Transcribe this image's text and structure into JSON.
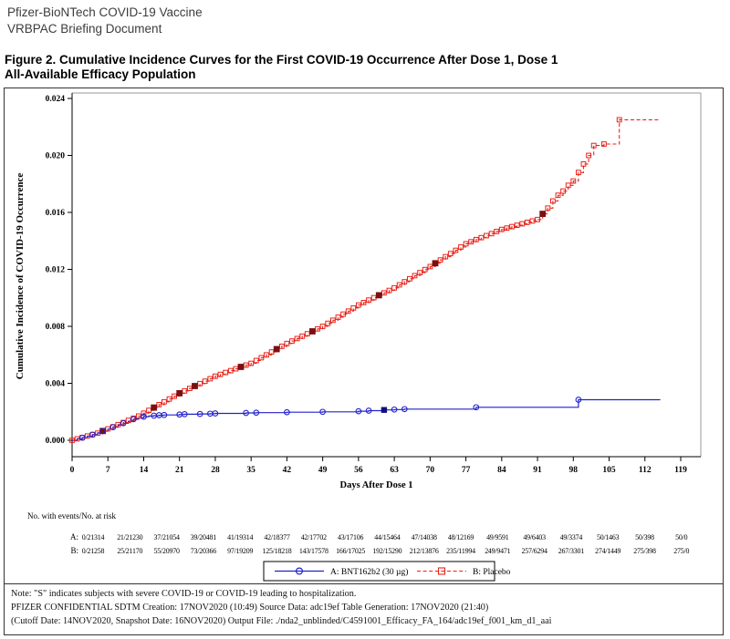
{
  "header": {
    "line1": "Pfizer-BioNTech COVID-19 Vaccine",
    "line2": "VRBPAC Briefing Document"
  },
  "title": {
    "line1": "Figure 2. Cumulative Incidence Curves for the First COVID-19 Occurrence After Dose 1, Dose 1",
    "line2": "All-Available Efficacy Population"
  },
  "chart_data": {
    "type": "line",
    "subtype": "kaplan-meier-step",
    "xlabel": "Days After Dose 1",
    "ylabel": "Cumulative Incidence of COVID-19 Occurrence",
    "xlim": [
      0,
      119
    ],
    "ylim": [
      0,
      0.024
    ],
    "xticks": [
      "0",
      "7",
      "14",
      "21",
      "28",
      "35",
      "42",
      "49",
      "56",
      "63",
      "70",
      "77",
      "84",
      "91",
      "98",
      "105",
      "112",
      "119"
    ],
    "yticks": [
      "0.000",
      "0.004",
      "0.008",
      "0.012",
      "0.016",
      "0.020",
      "0.024"
    ],
    "grid": false,
    "legend_position": "bottom-center",
    "series": [
      {
        "id": "B",
        "label": "B: Placebo",
        "color": "#e8231a",
        "severe_color": "#7d0f0f",
        "line": "dashed",
        "marker": "open-square",
        "points": [
          [
            0,
            0
          ],
          [
            1,
            0.0001
          ],
          [
            2,
            0.0002
          ],
          [
            3,
            0.0003
          ],
          [
            4,
            0.0004
          ],
          [
            5,
            0.0005
          ],
          [
            6,
            0.00065
          ],
          [
            7,
            0.0008
          ],
          [
            8,
            0.00095
          ],
          [
            9,
            0.0011
          ],
          [
            10,
            0.00125
          ],
          [
            11,
            0.0014
          ],
          [
            12,
            0.00155
          ],
          [
            13,
            0.0017
          ],
          [
            14,
            0.0019
          ],
          [
            15,
            0.0021
          ],
          [
            16,
            0.0023
          ],
          [
            17,
            0.0025
          ],
          [
            18,
            0.0027
          ],
          [
            19,
            0.0029
          ],
          [
            20,
            0.0031
          ],
          [
            21,
            0.0033
          ],
          [
            22,
            0.00347
          ],
          [
            23,
            0.00364
          ],
          [
            24,
            0.00381
          ],
          [
            25,
            0.00398
          ],
          [
            26,
            0.00415
          ],
          [
            27,
            0.00432
          ],
          [
            28,
            0.0045
          ],
          [
            29,
            0.00463
          ],
          [
            30,
            0.00476
          ],
          [
            31,
            0.00489
          ],
          [
            32,
            0.00502
          ],
          [
            33,
            0.00515
          ],
          [
            34,
            0.00528
          ],
          [
            35,
            0.0054
          ],
          [
            36,
            0.0056
          ],
          [
            37,
            0.0058
          ],
          [
            38,
            0.006
          ],
          [
            39,
            0.0062
          ],
          [
            40,
            0.0064
          ],
          [
            41,
            0.0066
          ],
          [
            42,
            0.0068
          ],
          [
            43,
            0.00697
          ],
          [
            44,
            0.00714
          ],
          [
            45,
            0.00731
          ],
          [
            46,
            0.00748
          ],
          [
            47,
            0.00765
          ],
          [
            48,
            0.00782
          ],
          [
            49,
            0.008
          ],
          [
            50,
            0.00821
          ],
          [
            51,
            0.00843
          ],
          [
            52,
            0.00864
          ],
          [
            53,
            0.00886
          ],
          [
            54,
            0.00907
          ],
          [
            55,
            0.00929
          ],
          [
            56,
            0.0095
          ],
          [
            57,
            0.00967
          ],
          [
            58,
            0.00984
          ],
          [
            59,
            0.01001
          ],
          [
            60,
            0.01018
          ],
          [
            61,
            0.01035
          ],
          [
            62,
            0.01052
          ],
          [
            63,
            0.0107
          ],
          [
            64,
            0.01091
          ],
          [
            65,
            0.01113
          ],
          [
            66,
            0.01134
          ],
          [
            67,
            0.01156
          ],
          [
            68,
            0.01177
          ],
          [
            69,
            0.01199
          ],
          [
            70,
            0.0122
          ],
          [
            71,
            0.01243
          ],
          [
            72,
            0.01266
          ],
          [
            73,
            0.01289
          ],
          [
            74,
            0.01311
          ],
          [
            75,
            0.01334
          ],
          [
            76,
            0.01357
          ],
          [
            77,
            0.0138
          ],
          [
            78,
            0.01394
          ],
          [
            79,
            0.01409
          ],
          [
            80,
            0.01423
          ],
          [
            81,
            0.01437
          ],
          [
            82,
            0.01451
          ],
          [
            83,
            0.01466
          ],
          [
            84,
            0.0148
          ],
          [
            85,
            0.0149
          ],
          [
            86,
            0.015
          ],
          [
            87,
            0.0151
          ],
          [
            88,
            0.0152
          ],
          [
            89,
            0.0153
          ],
          [
            90,
            0.0154
          ],
          [
            91,
            0.0155
          ],
          [
            92,
            0.0159
          ],
          [
            93,
            0.0163
          ],
          [
            94,
            0.0168
          ],
          [
            95,
            0.0172
          ],
          [
            96,
            0.0175
          ],
          [
            97,
            0.0179
          ],
          [
            98,
            0.0182
          ],
          [
            99,
            0.0188
          ],
          [
            100,
            0.0194
          ],
          [
            101,
            0.02
          ],
          [
            102,
            0.0207
          ],
          [
            104,
            0.0208
          ],
          [
            107,
            0.0225
          ],
          [
            115,
            0.0225
          ]
        ],
        "severe_days": [
          6,
          16,
          21,
          24,
          33,
          40,
          47,
          60,
          71,
          92
        ]
      },
      {
        "id": "A",
        "label": "A: BNT162b2 (30 µg)",
        "color": "#2222cc",
        "severe_color": "#11117a",
        "line": "solid",
        "marker": "open-circle",
        "points": [
          [
            0,
            0
          ],
          [
            1,
            0.0001
          ],
          [
            2,
            0.00018
          ],
          [
            3,
            0.00028
          ],
          [
            4,
            0.0004
          ],
          [
            5,
            0.00052
          ],
          [
            6,
            0.00064
          ],
          [
            7,
            0.00078
          ],
          [
            8,
            0.00092
          ],
          [
            9,
            0.00106
          ],
          [
            10,
            0.0012
          ],
          [
            11,
            0.00134
          ],
          [
            12,
            0.00148
          ],
          [
            13,
            0.00158
          ],
          [
            14,
            0.00166
          ],
          [
            15,
            0.0017
          ],
          [
            16,
            0.00173
          ],
          [
            17,
            0.00176
          ],
          [
            18,
            0.00178
          ],
          [
            21,
            0.00181
          ],
          [
            22,
            0.00183
          ],
          [
            25,
            0.00185
          ],
          [
            27,
            0.00187
          ],
          [
            28,
            0.00189
          ],
          [
            34,
            0.00192
          ],
          [
            36,
            0.00194
          ],
          [
            42,
            0.00197
          ],
          [
            49,
            0.002
          ],
          [
            56,
            0.00204
          ],
          [
            58,
            0.00208
          ],
          [
            61,
            0.00213
          ],
          [
            63,
            0.00216
          ],
          [
            65,
            0.00219
          ],
          [
            79,
            0.00232
          ],
          [
            99,
            0.00285
          ],
          [
            115,
            0.00285
          ]
        ],
        "marker_days": [
          2,
          4,
          6,
          8,
          10,
          12,
          14,
          16,
          17,
          18,
          21,
          22,
          25,
          27,
          28,
          34,
          36,
          42,
          49,
          56,
          58,
          63,
          65,
          79,
          99
        ],
        "severe_days": [
          61
        ]
      }
    ]
  },
  "risk_table": {
    "caption": "No. with events/No. at risk",
    "rows": [
      {
        "label": "A:",
        "values": [
          "0/21314",
          "21/21230",
          "37/21054",
          "39/20481",
          "41/19314",
          "42/18377",
          "42/17702",
          "43/17106",
          "44/15464",
          "47/14038",
          "48/12169",
          "49/9591",
          "49/6403",
          "49/3374",
          "50/1463",
          "50/398",
          "50/0"
        ]
      },
      {
        "label": "B:",
        "values": [
          "0/21258",
          "25/21170",
          "55/20970",
          "73/20366",
          "97/19209",
          "125/18218",
          "143/17578",
          "166/17025",
          "192/15290",
          "212/13876",
          "235/11994",
          "249/9471",
          "257/6294",
          "267/3301",
          "274/1449",
          "275/398",
          "275/0"
        ]
      }
    ]
  },
  "footnotes": [
    "Note: \"S\" indicates subjects with severe COVID-19 or COVID-19 leading to hospitalization.",
    "PFIZER CONFIDENTIAL  SDTM Creation: 17NOV2020 (10:49)  Source Data: adc19ef  Table Generation: 17NOV2020 (21:40)",
    "(Cutoff Date: 14NOV2020, Snapshot Date: 16NOV2020) Output File: ./nda2_unblinded/C4591001_Efficacy_FA_164/adc19ef_f001_km_d1_aai"
  ]
}
